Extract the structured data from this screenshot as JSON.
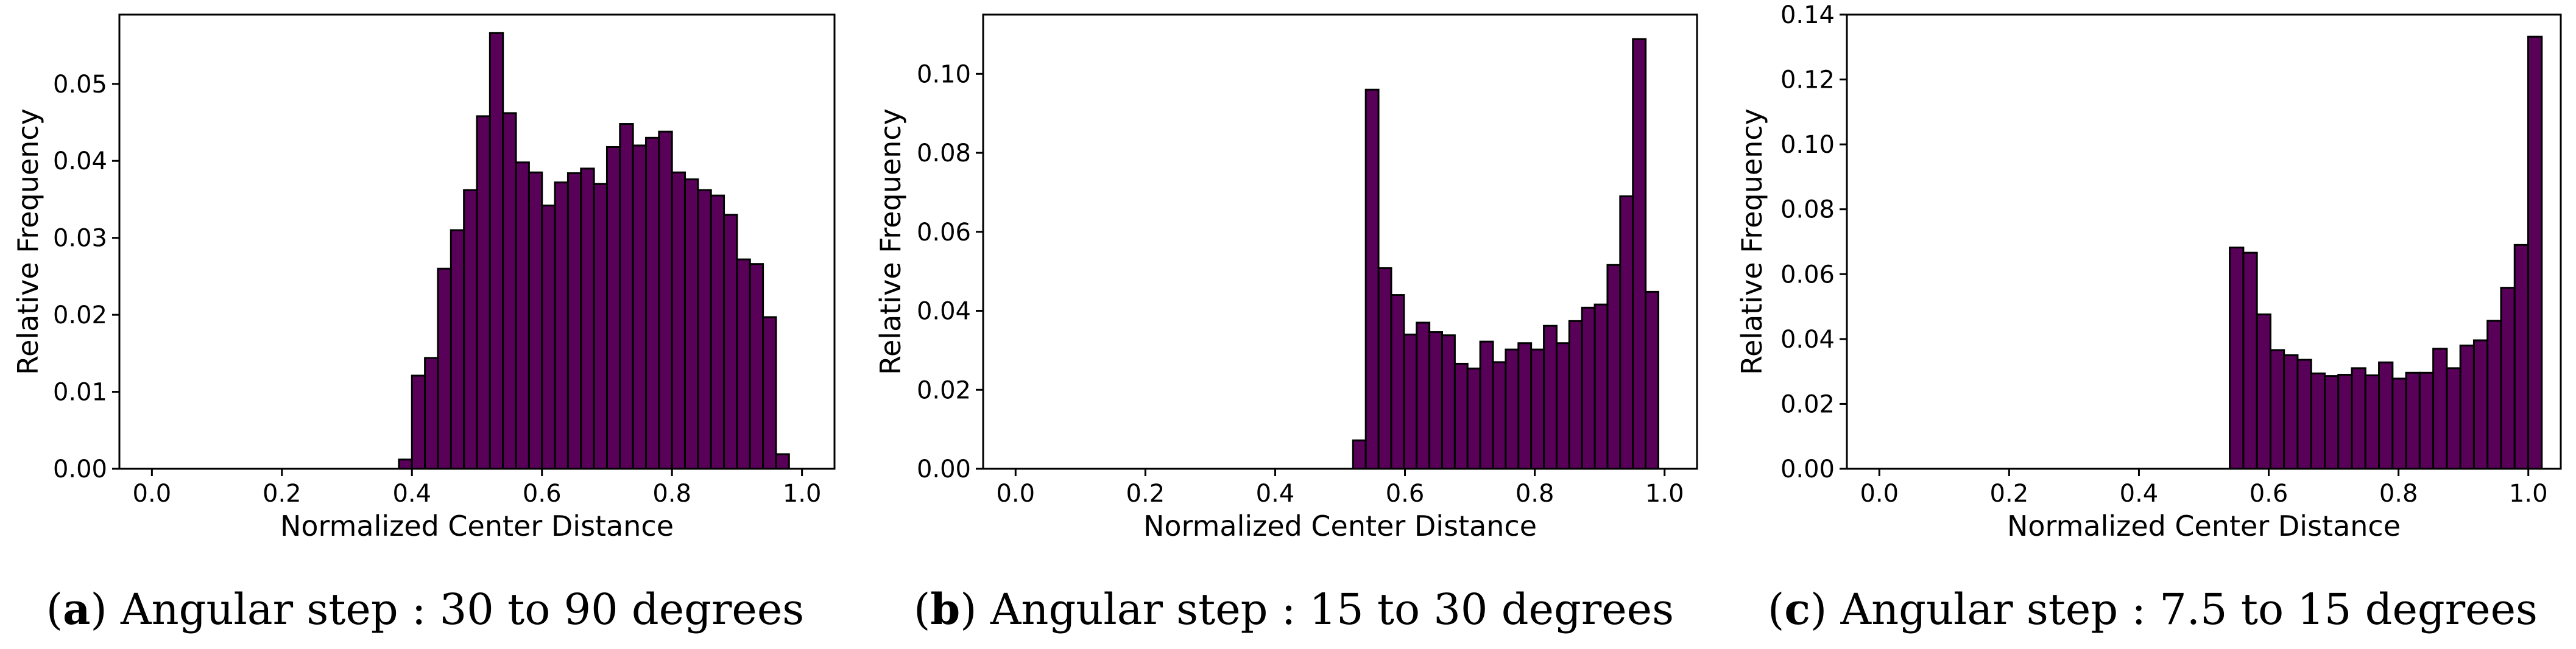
{
  "colors": {
    "bar_fill": "#590059",
    "bar_edge": "#000000"
  },
  "chart_data": [
    {
      "type": "bar",
      "caption": {
        "letter": "a",
        "text": "Angular step : 30 to 90 degrees"
      },
      "xlabel": "Normalized Center Distance",
      "ylabel": "Relative Frequency",
      "xlim": [
        -0.05,
        1.05
      ],
      "ylim": [
        0,
        0.059
      ],
      "xticks": [
        "0.0",
        "0.2",
        "0.4",
        "0.6",
        "0.8",
        "1.0"
      ],
      "yticks": [
        "0.00",
        "0.01",
        "0.02",
        "0.03",
        "0.04",
        "0.05"
      ],
      "bin_start": 0.38,
      "bin_width": 0.02,
      "values": [
        0.0012,
        0.0121,
        0.0144,
        0.026,
        0.031,
        0.0362,
        0.0458,
        0.0566,
        0.0462,
        0.0398,
        0.0385,
        0.0342,
        0.0372,
        0.0384,
        0.039,
        0.037,
        0.0418,
        0.0448,
        0.042,
        0.043,
        0.0438,
        0.0385,
        0.0376,
        0.0362,
        0.0355,
        0.033,
        0.0272,
        0.0266,
        0.0197,
        0.0019
      ]
    },
    {
      "type": "bar",
      "caption": {
        "letter": "b",
        "text": "Angular step : 15 to 30 degrees"
      },
      "xlabel": "Normalized Center Distance",
      "ylabel": "Relative Frequency",
      "xlim": [
        -0.05,
        1.05
      ],
      "ylim": [
        0,
        0.115
      ],
      "xticks": [
        "0.0",
        "0.2",
        "0.4",
        "0.6",
        "0.8",
        "1.0"
      ],
      "yticks": [
        "0.00",
        "0.02",
        "0.04",
        "0.06",
        "0.08",
        "0.10"
      ],
      "bin_start": 0.52,
      "bin_width": 0.0196,
      "values": [
        0.0072,
        0.096,
        0.0508,
        0.044,
        0.034,
        0.037,
        0.0346,
        0.0338,
        0.0266,
        0.0254,
        0.0322,
        0.027,
        0.0302,
        0.0318,
        0.0302,
        0.0362,
        0.0318,
        0.0374,
        0.0408,
        0.0416,
        0.0516,
        0.069,
        0.1088,
        0.0448
      ]
    },
    {
      "type": "bar",
      "caption": {
        "letter": "c",
        "text": "Angular step : 7.5 to 15 degrees"
      },
      "xlabel": "Normalized Center Distance",
      "ylabel": "Relative Frequency",
      "xlim": [
        -0.05,
        1.05
      ],
      "ylim": [
        0,
        0.14
      ],
      "xticks": [
        "0.0",
        "0.2",
        "0.4",
        "0.6",
        "0.8",
        "1.0"
      ],
      "yticks": [
        "0.00",
        "0.02",
        "0.04",
        "0.06",
        "0.08",
        "0.10",
        "0.12",
        "0.14"
      ],
      "bin_start": 0.54,
      "bin_width": 0.0209,
      "values": [
        0.0682,
        0.0666,
        0.0476,
        0.0366,
        0.035,
        0.0336,
        0.0294,
        0.0286,
        0.029,
        0.031,
        0.0288,
        0.0328,
        0.0278,
        0.0296,
        0.0296,
        0.037,
        0.031,
        0.038,
        0.0396,
        0.0456,
        0.0558,
        0.069,
        0.1332
      ]
    }
  ]
}
